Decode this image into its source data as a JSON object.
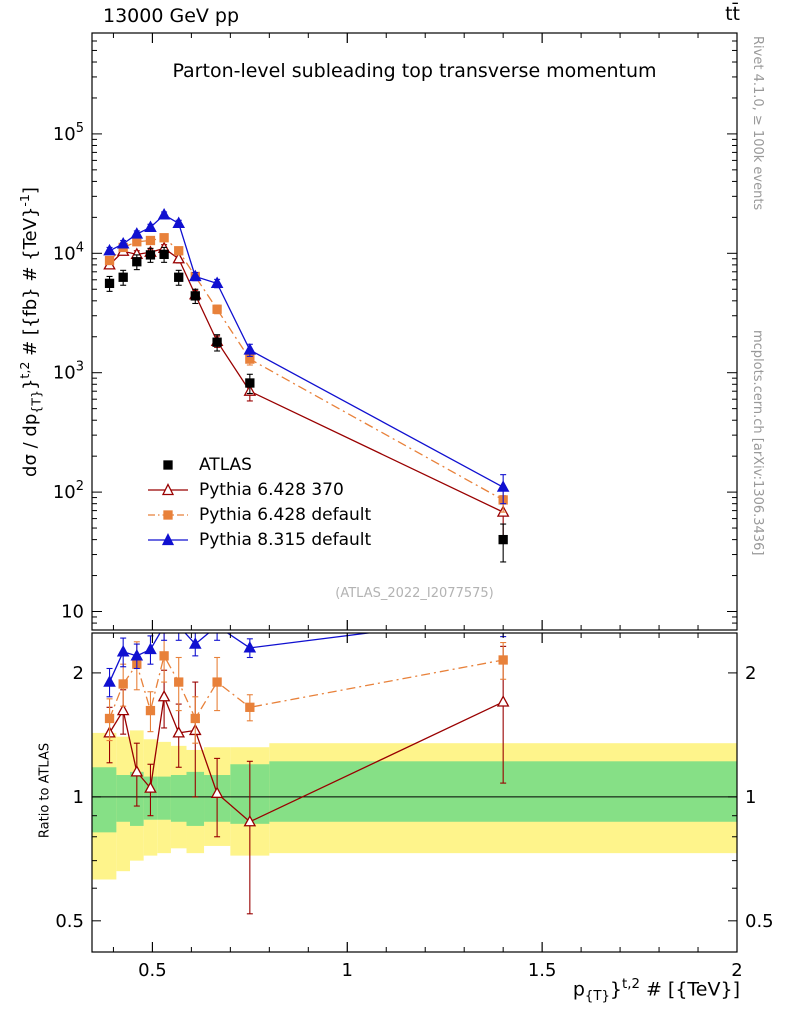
{
  "header": {
    "left": "13000 GeV pp",
    "right": "tt̄"
  },
  "titles": {
    "main": "Parton-level subleading top transverse momentum",
    "watermark": "(ATLAS_2022_I2077575)"
  },
  "side_notes": {
    "right_top": "Rivet 4.1.0, ≥ 100k events",
    "right_bottom": "mcplots.cern.ch [arXiv:1306.3436]"
  },
  "axes": {
    "ratio_label": "Ratio to ATLAS",
    "y_main_label_segments": [
      {
        "t": "dσ / dp"
      },
      {
        "t": "{T}",
        "s": "sub"
      },
      {
        "t": "}"
      },
      {
        "t": "t,2",
        "s": "sup"
      },
      {
        "t": " # [{fb} # {TeV}"
      },
      {
        "t": "-1",
        "s": "sup"
      },
      {
        "t": "]"
      }
    ],
    "x_label_segments": [
      {
        "t": "p"
      },
      {
        "t": "{T}",
        "s": "sub"
      },
      {
        "t": "}"
      },
      {
        "t": "t,2",
        "s": "sup"
      },
      {
        "t": " # [{TeV}]"
      }
    ]
  },
  "chart_data": {
    "type": "line",
    "title": "Parton-level subleading top transverse momentum",
    "xlabel": "p_{T}^{t,2} # [{TeV}]",
    "ylabel": "dσ / dp_{T}^{t,2} # [{fb} # {TeV}^{-1}]",
    "ratio_label": "Ratio to ATLAS",
    "x_scale": "linear",
    "y_scale": "log",
    "ratio_scale": "log",
    "x_range": [
      0.345,
      2.0
    ],
    "x_ticks": [
      0.5,
      1,
      1.5,
      2
    ],
    "x_tick_labels": [
      "0.5",
      "1",
      "1.5",
      "2"
    ],
    "y_main_range": [
      7,
      700000
    ],
    "y_main_ticks": [
      {
        "v": 10,
        "label": "10",
        "exp": ""
      },
      {
        "v": 100,
        "label": "10",
        "exp": "2"
      },
      {
        "v": 1000,
        "label": "10",
        "exp": "3"
      },
      {
        "v": 10000,
        "label": "10",
        "exp": "4"
      },
      {
        "v": 100000,
        "label": "10",
        "exp": "5"
      }
    ],
    "ratio_range": [
      0.42,
      2.5
    ],
    "ratio_ticks": [
      {
        "v": 0.5,
        "label": "0.5"
      },
      {
        "v": 1,
        "label": "1"
      },
      {
        "v": 2,
        "label": "2"
      }
    ],
    "x": [
      0.39,
      0.425,
      0.46,
      0.495,
      0.53,
      0.5675,
      0.61,
      0.666,
      0.75,
      1.4
    ],
    "bin_edges": [
      0.345,
      0.4075,
      0.4425,
      0.4775,
      0.5125,
      0.5475,
      0.5875,
      0.6325,
      0.7,
      0.8,
      2.0
    ],
    "series": [
      {
        "name": "ATLAS",
        "color": "#000000",
        "marker": "square",
        "fill": true,
        "line": "none",
        "values": [
          5600,
          6300,
          8500,
          9700,
          9800,
          6300,
          4400,
          1800,
          820,
          40
        ],
        "errors": [
          800,
          900,
          1200,
          1300,
          1400,
          900,
          600,
          280,
          150,
          14
        ]
      },
      {
        "name": "Pythia 6.428 370",
        "color": "#990000",
        "marker": "triangle",
        "fill": false,
        "line": "solid",
        "values": [
          8000,
          10400,
          9800,
          10200,
          11000,
          9000,
          4500,
          1830,
          700,
          68
        ],
        "errors": [
          600,
          700,
          700,
          700,
          800,
          700,
          400,
          200,
          120,
          25
        ],
        "ratio": [
          1.43,
          1.62,
          1.15,
          1.05,
          1.75,
          1.43,
          1.45,
          1.02,
          0.87,
          1.7
        ],
        "ratio_errors": [
          0.22,
          0.2,
          0.2,
          0.15,
          0.28,
          0.25,
          0.45,
          0.22,
          0.35,
          0.62
        ]
      },
      {
        "name": "Pythia 6.428 default",
        "color": "#e8813a",
        "marker": "square",
        "fill": true,
        "line": "dashdot",
        "values": [
          8700,
          11200,
          12500,
          12800,
          13500,
          10500,
          6400,
          3400,
          1300,
          86
        ],
        "errors": [
          600,
          700,
          800,
          800,
          900,
          800,
          450,
          280,
          140,
          18
        ],
        "ratio": [
          1.55,
          1.88,
          2.1,
          1.62,
          2.2,
          1.9,
          1.55,
          1.9,
          1.65,
          2.15
        ],
        "ratio_errors": [
          0.18,
          0.22,
          0.28,
          0.18,
          0.3,
          0.28,
          0.2,
          0.28,
          0.12,
          0.22
        ]
      },
      {
        "name": "Pythia 8.315 default",
        "color": "#1010d0",
        "marker": "triangle",
        "fill": true,
        "line": "solid",
        "values": [
          10500,
          12000,
          14500,
          16500,
          21000,
          17800,
          6400,
          5600,
          1550,
          110
        ],
        "errors": [
          700,
          800,
          900,
          1000,
          1200,
          1100,
          500,
          450,
          180,
          30
        ],
        "ratio": [
          1.9,
          2.25,
          2.2,
          2.28,
          2.6,
          2.6,
          2.35,
          2.6,
          2.3,
          2.75
        ],
        "ratio_errors": [
          0.15,
          0.18,
          0.15,
          0.18,
          0.2,
          0.2,
          0.15,
          0.2,
          0.12,
          0.3
        ]
      }
    ],
    "bands": {
      "yellow_color": "#fef48b",
      "green_color": "#86e086",
      "yellow": [
        [
          0.63,
          1.43
        ],
        [
          0.66,
          1.4
        ],
        [
          0.7,
          1.45
        ],
        [
          0.72,
          1.38
        ],
        [
          0.73,
          1.36
        ],
        [
          0.75,
          1.33
        ],
        [
          0.73,
          1.3
        ],
        [
          0.76,
          1.32
        ],
        [
          0.72,
          1.32
        ],
        [
          0.73,
          1.35
        ]
      ],
      "green": [
        [
          0.82,
          1.18
        ],
        [
          0.87,
          1.13
        ],
        [
          0.85,
          1.15
        ],
        [
          0.88,
          1.12
        ],
        [
          0.88,
          1.12
        ],
        [
          0.87,
          1.13
        ],
        [
          0.85,
          1.15
        ],
        [
          0.87,
          1.13
        ],
        [
          0.86,
          1.2
        ],
        [
          0.87,
          1.22
        ]
      ]
    },
    "legend_position": "inside-left-bottom",
    "grid": false
  }
}
